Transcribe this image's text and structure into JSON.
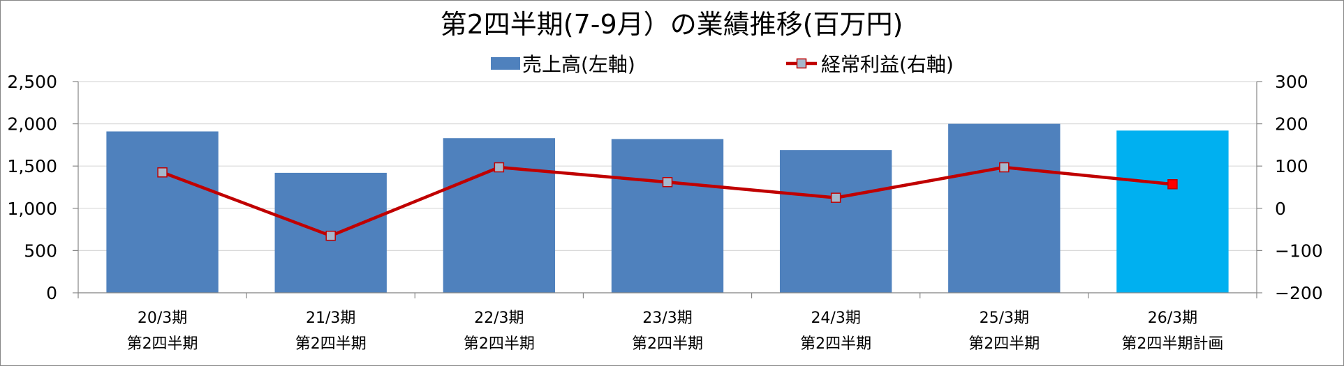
{
  "chart_data": {
    "type": "bar",
    "title": "第2四半期(7-9月）の業績推移(百万円)",
    "categories": [
      [
        "20/3期",
        "第2四半期"
      ],
      [
        "21/3期",
        "第2四半期"
      ],
      [
        "22/3期",
        "第2四半期"
      ],
      [
        "23/3期",
        "第2四半期"
      ],
      [
        "24/3期",
        "第2四半期"
      ],
      [
        "25/3期",
        "第2四半期"
      ],
      [
        "26/3期",
        "第2四半期計画"
      ]
    ],
    "series": [
      {
        "name": "売上高(左軸)",
        "type": "bar",
        "axis": "left",
        "color": "#4F81BD",
        "highlight_color": "#00B0F0",
        "highlight_index": 6,
        "values": [
          1910,
          1420,
          1830,
          1820,
          1690,
          2000,
          1920
        ]
      },
      {
        "name": "経常利益(右軸)",
        "type": "line",
        "axis": "right",
        "color": "#C00000",
        "marker_color": "#A6B8CC",
        "highlight_marker_color": "#FF0000",
        "highlight_index": 6,
        "values": [
          85,
          -65,
          97,
          62,
          25,
          97,
          57
        ]
      }
    ],
    "y_left": {
      "ylim": [
        0,
        2500
      ],
      "ticks": [
        "0",
        "500",
        "1,000",
        "1,500",
        "2,000",
        "2,500"
      ]
    },
    "y_right": {
      "ylim": [
        -200,
        300
      ],
      "ticks": [
        "−200",
        "−100",
        "0",
        "100",
        "200",
        "300"
      ],
      "negative_color": "#FF0000"
    },
    "grid": true,
    "legend_position": "top"
  }
}
